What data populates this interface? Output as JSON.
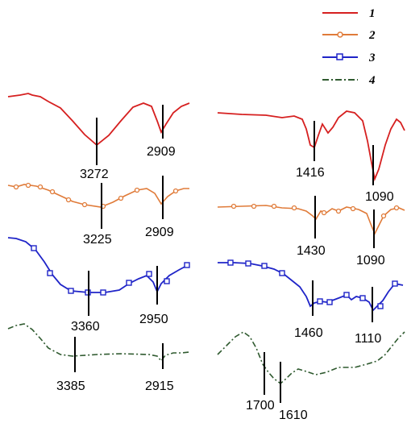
{
  "chart_data": {
    "type": "line",
    "legend": {
      "placement": "top-right",
      "entries": [
        {
          "label": "1",
          "color": "#d62020",
          "marker": "none",
          "dash": "solid"
        },
        {
          "label": "2",
          "color": "#e07b39",
          "marker": "circle",
          "dash": "solid"
        },
        {
          "label": "3",
          "color": "#1f24c8",
          "marker": "square",
          "dash": "solid"
        },
        {
          "label": "4",
          "color": "#2f5a2f",
          "marker": "none",
          "dash": "dash-dot"
        }
      ]
    },
    "panels": [
      {
        "region": "high-wavenumber",
        "series": [
          {
            "label": "1",
            "marked_peaks": [
              "3272",
              "2909"
            ]
          },
          {
            "label": "2",
            "marked_peaks": [
              "3225",
              "2909"
            ]
          },
          {
            "label": "3",
            "marked_peaks": [
              "3360",
              "2950"
            ]
          },
          {
            "label": "4",
            "marked_peaks": [
              "3385",
              "2915"
            ]
          }
        ]
      },
      {
        "region": "low-wavenumber",
        "series": [
          {
            "label": "1",
            "marked_peaks": [
              "1416",
              "1090"
            ]
          },
          {
            "label": "2",
            "marked_peaks": [
              "1430",
              "1090"
            ]
          },
          {
            "label": "3",
            "marked_peaks": [
              "1460",
              "1110"
            ]
          },
          {
            "label": "4",
            "marked_peaks": [
              "1700",
              "1610"
            ]
          }
        ]
      }
    ],
    "axes": {
      "visible": false
    },
    "grid": false
  }
}
